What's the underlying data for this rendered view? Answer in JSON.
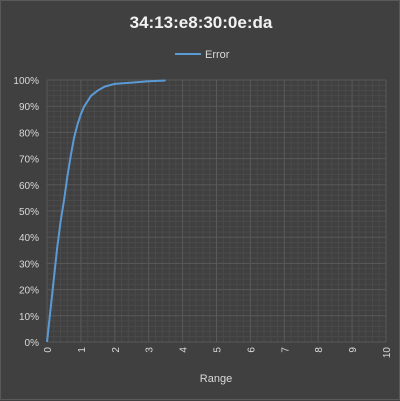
{
  "chart_data": {
    "type": "line",
    "title": "34:13:e8:30:0e:da",
    "xlabel": "Range",
    "ylabel": "",
    "legend": {
      "position": "top"
    },
    "grid": true,
    "colors": {
      "background": "#404040",
      "grid_major": "#595959",
      "grid_minor": "#4a4a4a",
      "series": "#5b9bd5",
      "text": "#d9d9d9"
    },
    "xlim": [
      0,
      10
    ],
    "ylim": [
      0,
      1
    ],
    "x_ticks": [
      "0",
      "1",
      "2",
      "3",
      "4",
      "5",
      "6",
      "7",
      "8",
      "9",
      "10"
    ],
    "y_ticks": [
      "0%",
      "10%",
      "20%",
      "30%",
      "40%",
      "50%",
      "60%",
      "70%",
      "80%",
      "90%",
      "100%"
    ],
    "series": [
      {
        "name": "Error",
        "x": [
          0,
          0.1,
          0.2,
          0.3,
          0.4,
          0.5,
          0.6,
          0.7,
          0.8,
          0.9,
          1.0,
          1.1,
          1.2,
          1.3,
          1.4,
          1.5,
          1.7,
          2.0,
          2.5,
          3.0,
          3.5
        ],
        "y": [
          0,
          0.12,
          0.24,
          0.36,
          0.46,
          0.54,
          0.63,
          0.71,
          0.78,
          0.83,
          0.87,
          0.9,
          0.92,
          0.94,
          0.95,
          0.96,
          0.975,
          0.985,
          0.99,
          0.995,
          0.998
        ]
      }
    ]
  }
}
